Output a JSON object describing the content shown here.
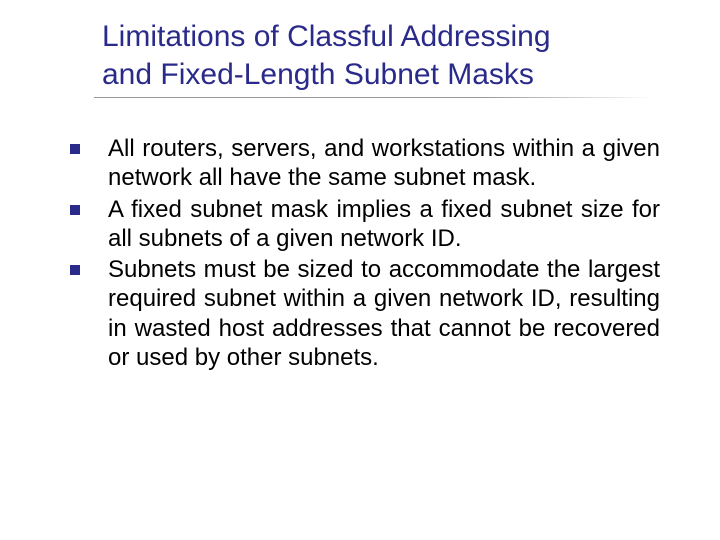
{
  "slide": {
    "title_line1": "Limitations of Classful Addressing",
    "title_line2": "and Fixed-Length Subnet Masks",
    "title_color": "#2a2a8a",
    "title_fontsize": 30,
    "underline_color": "#999999",
    "background_color": "#ffffff",
    "bullets": [
      {
        "text": "All routers, servers, and workstations within a given network all have the same subnet mask."
      },
      {
        "text": "A fixed subnet mask implies a fixed subnet size for all subnets of a given network ID."
      },
      {
        "text": "Subnets must be sized to accommodate the largest required subnet within a given network ID, resulting in wasted host addresses that cannot be recovered or used by other subnets."
      }
    ],
    "bullet_marker_color": "#2a2a8a",
    "body_fontsize": 24,
    "body_color": "#000000"
  }
}
